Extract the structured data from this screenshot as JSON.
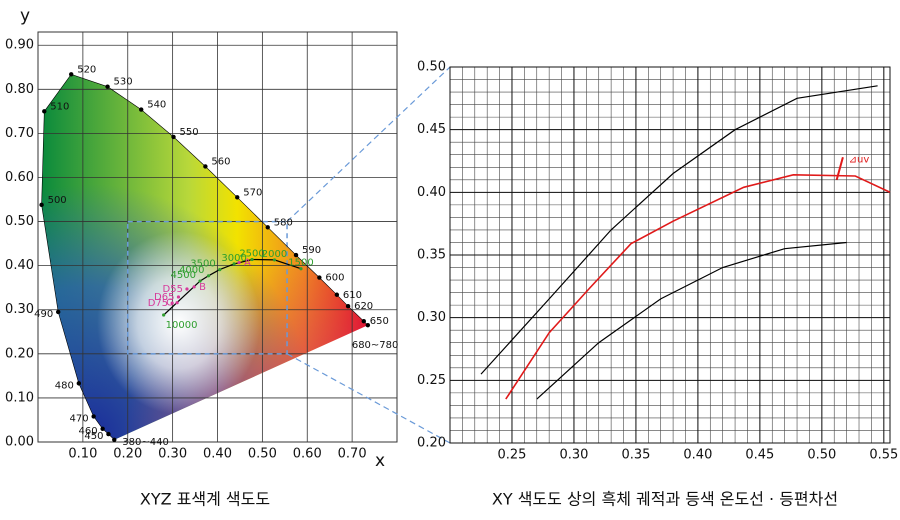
{
  "chart_data": [
    {
      "type": "scatter",
      "caption": "XYZ 표색계 색도도",
      "xlabel": "x",
      "ylabel": "y",
      "xlim": [
        0,
        0.8
      ],
      "ylim": [
        0,
        0.93
      ],
      "xticks": [
        {
          "value": 0.1,
          "label": "0.10"
        },
        {
          "value": 0.2,
          "label": "0.20"
        },
        {
          "value": 0.3,
          "label": "0.30"
        },
        {
          "value": 0.4,
          "label": "0.40"
        },
        {
          "value": 0.5,
          "label": "0.50"
        },
        {
          "value": 0.6,
          "label": "0.60"
        },
        {
          "value": 0.7,
          "label": "0.70"
        }
      ],
      "yticks": [
        {
          "value": 0,
          "label": "0.00"
        },
        {
          "value": 0.1,
          "label": "0.10"
        },
        {
          "value": 0.2,
          "label": "0.20"
        },
        {
          "value": 0.3,
          "label": "0.30"
        },
        {
          "value": 0.4,
          "label": "0.40"
        },
        {
          "value": 0.5,
          "label": "0.50"
        },
        {
          "value": 0.6,
          "label": "0.60"
        },
        {
          "value": 0.7,
          "label": "0.70"
        },
        {
          "value": 0.8,
          "label": "0.80"
        },
        {
          "value": 0.9,
          "label": "0.90"
        }
      ],
      "grid": true,
      "series": [
        {
          "color": "#000000",
          "x": [
            0.17,
            0.157,
            0.144,
            0.124,
            0.091,
            0.045,
            0.008,
            0.014,
            0.074,
            0.155,
            0.23,
            0.302,
            0.373,
            0.444,
            0.512,
            0.575,
            0.627,
            0.666,
            0.691,
            0.726,
            0.735
          ],
          "values": [
            0.005,
            0.018,
            0.03,
            0.058,
            0.133,
            0.295,
            0.538,
            0.75,
            0.834,
            0.806,
            0.754,
            0.692,
            0.625,
            0.555,
            0.487,
            0.424,
            0.373,
            0.334,
            0.308,
            0.274,
            0.265
          ],
          "point_labels": [
            "380~440",
            "450",
            "460",
            "470",
            "480",
            "490",
            "500",
            "510",
            "520",
            "530",
            "540",
            "550",
            "560",
            "570",
            "580",
            "590",
            "600",
            "610",
            "620",
            "650",
            "680~780"
          ]
        },
        {
          "color": "#2e9e2e",
          "x": [
            0.28,
            0.361,
            0.38,
            0.405,
            0.437,
            0.477,
            0.527,
            0.586
          ],
          "values": [
            0.288,
            0.365,
            0.377,
            0.391,
            0.404,
            0.414,
            0.413,
            0.393
          ],
          "point_labels": [
            "10000",
            "4500",
            "4000",
            "3500",
            "3000",
            "2500",
            "2000",
            "1500"
          ]
        },
        {
          "color": "#d63a9a",
          "x": [
            0.299,
            0.31,
            0.313,
            0.332,
            0.348,
            0.448
          ],
          "values": [
            0.315,
            0.316,
            0.329,
            0.347,
            0.352,
            0.407
          ],
          "point_labels": [
            "D75",
            "C",
            "D65",
            "D55",
            "B",
            "A"
          ]
        }
      ]
    },
    {
      "type": "line",
      "caption": "XY 색도도 상의 흑체 궤적과 등색 온도선 · 등편차선",
      "annotation": "⊿uv",
      "xlim": [
        0.2,
        0.555
      ],
      "ylim": [
        0.2,
        0.5
      ],
      "minor_grid_step": 0.01,
      "xticks": [
        {
          "value": 0.25,
          "label": "0.25"
        },
        {
          "value": 0.3,
          "label": "0.30"
        },
        {
          "value": 0.35,
          "label": "0.35"
        },
        {
          "value": 0.4,
          "label": "0.40"
        },
        {
          "value": 0.45,
          "label": "0.45"
        },
        {
          "value": 0.5,
          "label": "0.50"
        },
        {
          "value": 0.55,
          "label": "0.55"
        }
      ],
      "yticks": [
        {
          "value": 0.2,
          "label": "0.20"
        },
        {
          "value": 0.25,
          "label": "0.25"
        },
        {
          "value": 0.3,
          "label": "0.30"
        },
        {
          "value": 0.35,
          "label": "0.35"
        },
        {
          "value": 0.4,
          "label": "0.40"
        },
        {
          "value": 0.45,
          "label": "0.45"
        },
        {
          "value": 0.5,
          "label": "0.50"
        }
      ],
      "grid": true,
      "series": [
        {
          "color": "#e01a1a",
          "x": [
            0.245,
            0.28,
            0.313,
            0.346,
            0.38,
            0.437,
            0.477,
            0.527,
            0.555
          ],
          "values": [
            0.235,
            0.288,
            0.324,
            0.359,
            0.377,
            0.404,
            0.414,
            0.413,
            0.4
          ]
        },
        {
          "color": "#000000",
          "x": [
            0.225,
            0.28,
            0.33,
            0.38,
            0.43,
            0.48,
            0.545
          ],
          "values": [
            0.255,
            0.315,
            0.37,
            0.415,
            0.45,
            0.475,
            0.485
          ]
        },
        {
          "color": "#000000",
          "x": [
            0.27,
            0.32,
            0.37,
            0.42,
            0.47,
            0.52
          ],
          "values": [
            0.235,
            0.28,
            0.315,
            0.34,
            0.355,
            0.36
          ]
        }
      ]
    }
  ]
}
